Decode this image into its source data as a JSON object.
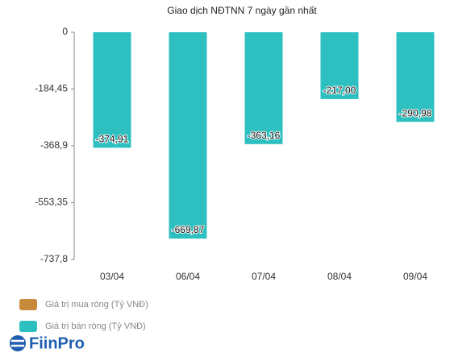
{
  "chart_data": {
    "type": "bar",
    "title": "Giao dịch NĐTNN 7 ngày gần nhất",
    "categories": [
      "03/04",
      "06/04",
      "07/04",
      "08/04",
      "09/04"
    ],
    "series": [
      {
        "name": "Giá trị mua ròng (Tỷ VNĐ)",
        "color": "#c68a3a",
        "values": [
          null,
          null,
          null,
          null,
          null
        ]
      },
      {
        "name": "Giá trị bán ròng (Tỷ VNĐ)",
        "color": "#2ec0c0",
        "values": [
          -374.91,
          -669.87,
          -363.16,
          -217.0,
          -290.98
        ],
        "value_labels": [
          "-374,91",
          "-669,87",
          "-363,16",
          "-217,00",
          "-290,98"
        ]
      }
    ],
    "ylim": [
      -737.8,
      0
    ],
    "yticks": [
      0,
      {
        "value": -184.45,
        "label": "-184,45"
      },
      {
        "value": -368.9,
        "label": "-368,9"
      },
      {
        "value": -553.35,
        "label": "-553,35"
      },
      {
        "value": -737.8,
        "label": "-737,8"
      }
    ],
    "grid": false
  },
  "logo": "FiinPro"
}
